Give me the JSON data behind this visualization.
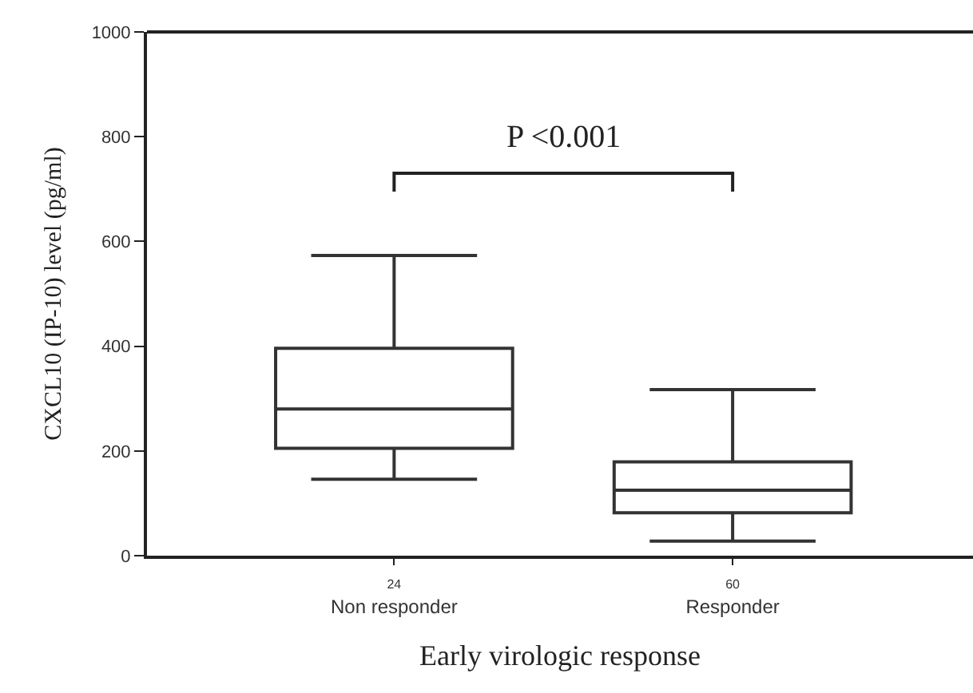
{
  "chart_data": {
    "type": "box",
    "categories": [
      "24\nNon responder",
      "60\nResponder"
    ],
    "boxes": [
      {
        "low": 146,
        "q1": 205,
        "median": 280,
        "q3": 396,
        "high": 573
      },
      {
        "low": 28,
        "q1": 82,
        "median": 125,
        "q3": 179,
        "high": 317
      }
    ],
    "color": "#333333",
    "xlabel": "Early virologic response",
    "ylabel": "CXCL10 (IP-10) level (pg/ml)",
    "ylim": [
      0,
      1000
    ],
    "yticks": [
      0,
      200,
      400,
      600,
      800,
      1000
    ],
    "annotations": [
      "P <0.001"
    ],
    "legend": false
  }
}
